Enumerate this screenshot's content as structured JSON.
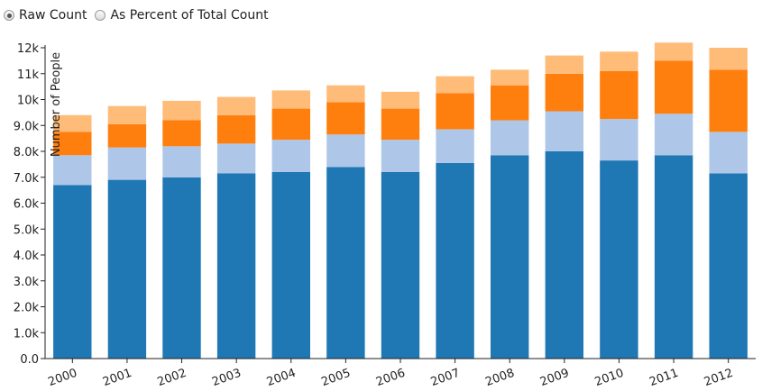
{
  "controls": {
    "options": [
      {
        "label": "Raw Count",
        "selected": true
      },
      {
        "label": "As Percent of Total Count",
        "selected": false
      }
    ]
  },
  "chart_data": {
    "type": "bar",
    "stacked": true,
    "ylabel": "Number of People",
    "xlabel": "",
    "ylim": [
      0,
      12000
    ],
    "yticks": [
      0,
      1000,
      2000,
      3000,
      4000,
      5000,
      6000,
      7000,
      8000,
      9000,
      10000,
      11000,
      12000
    ],
    "ytick_labels": [
      "0.0",
      "1.0k",
      "2.0k",
      "3.0k",
      "4.0k",
      "5.0k",
      "6.0k",
      "7.0k",
      "8.0k",
      "9.0k",
      "10k",
      "11k",
      "12k"
    ],
    "categories": [
      "2000",
      "2001",
      "2002",
      "2003",
      "2004",
      "2005",
      "2006",
      "2007",
      "2008",
      "2009",
      "2010",
      "2011",
      "2012"
    ],
    "series": [
      {
        "color": "#1f77b4",
        "values": [
          6700,
          6900,
          7000,
          7150,
          7200,
          7400,
          7200,
          7550,
          7850,
          8000,
          7650,
          7850,
          7150
        ]
      },
      {
        "color": "#aec7e8",
        "values": [
          1150,
          1250,
          1200,
          1150,
          1250,
          1250,
          1250,
          1300,
          1350,
          1550,
          1600,
          1600,
          1600
        ]
      },
      {
        "color": "#ff7f0e",
        "values": [
          900,
          900,
          1000,
          1100,
          1200,
          1250,
          1200,
          1400,
          1350,
          1450,
          1850,
          2050,
          2400
        ]
      },
      {
        "color": "#ffbb78",
        "values": [
          650,
          700,
          750,
          700,
          700,
          650,
          650,
          650,
          600,
          700,
          750,
          700,
          850
        ]
      }
    ],
    "grid": false,
    "legend": "none"
  }
}
